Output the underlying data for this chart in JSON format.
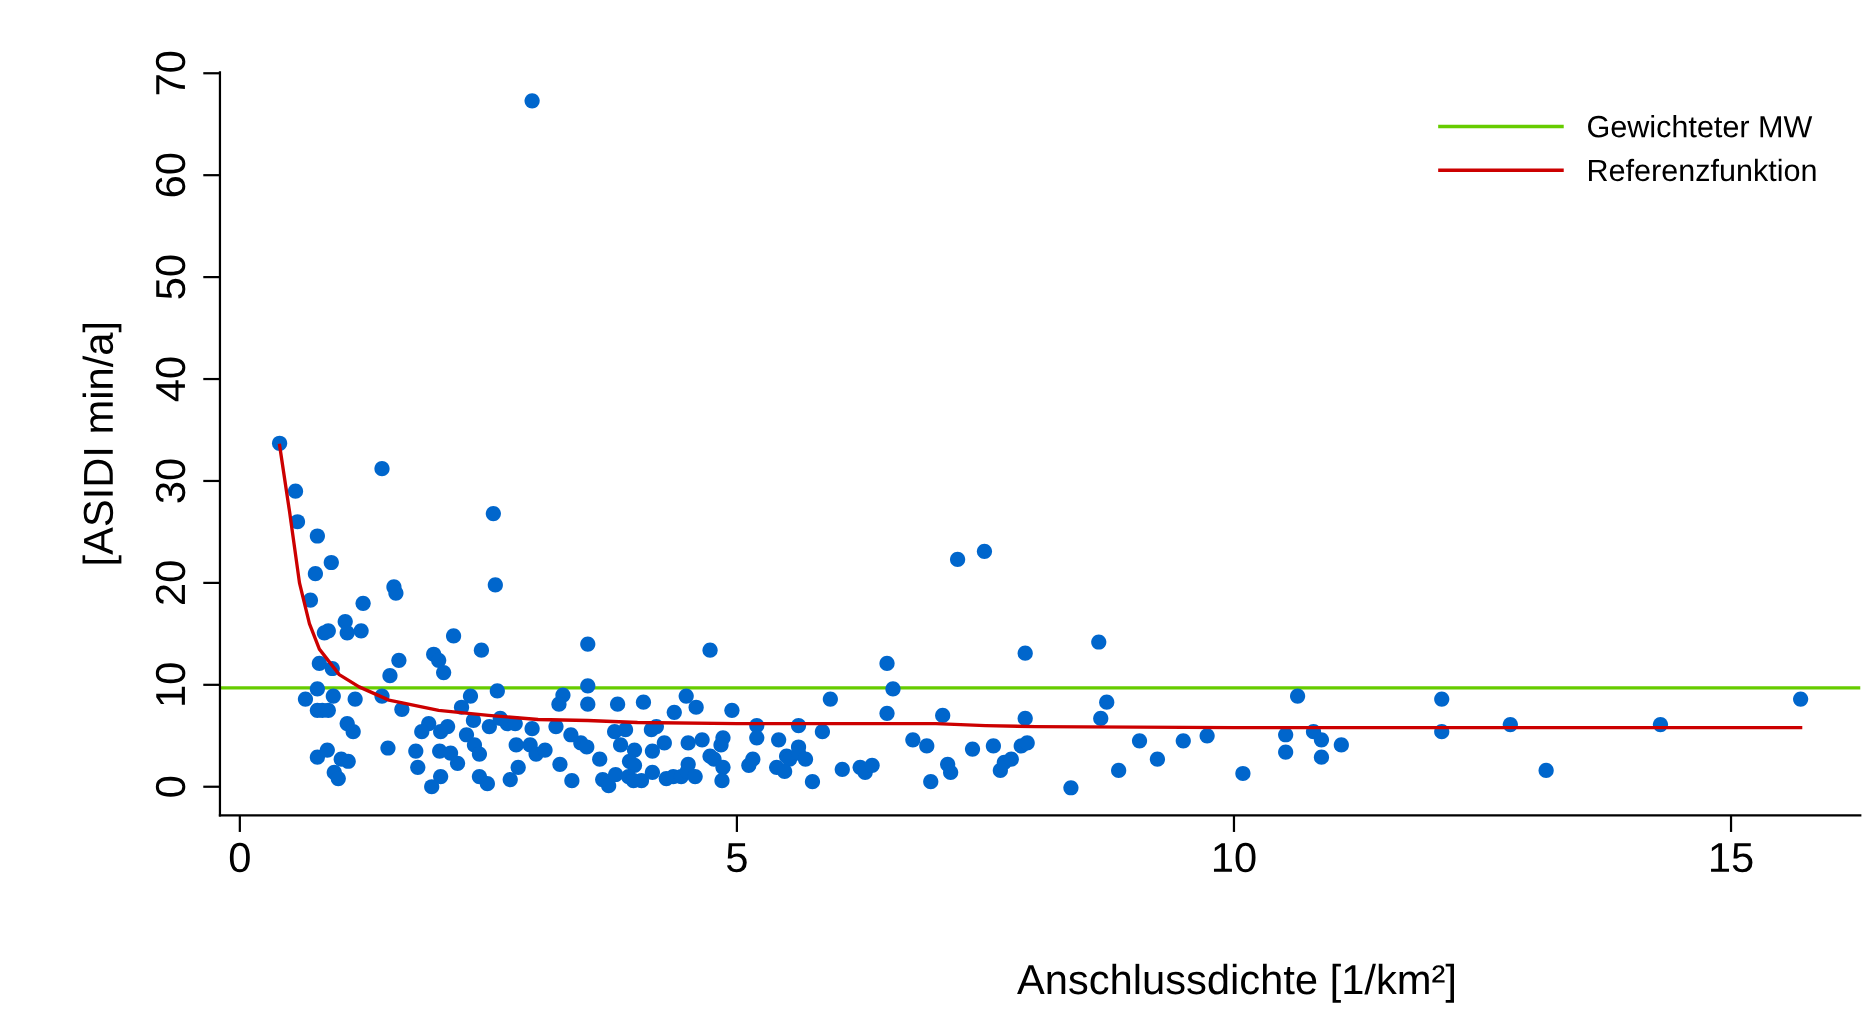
{
  "chart_data": {
    "type": "scatter",
    "xlabel": "Anschlussdichte [1/km²]",
    "ylabel": "[ASIDI min/a]",
    "xlim": [
      -0.2,
      16.3
    ],
    "ylim": [
      -2.8,
      70.1
    ],
    "xticks": [
      0,
      5,
      10,
      15
    ],
    "yticks": [
      0,
      10,
      20,
      30,
      40,
      50,
      60,
      70
    ],
    "grid": false,
    "legend": "top right",
    "marker": "circle",
    "ref_lines": [
      {
        "axis": "y",
        "value": 9.7,
        "label": "Gewichteter MW",
        "color": "#66cc00",
        "line_style": "solid"
      }
    ],
    "series": [
      {
        "color": "#0066cc",
        "x": [
          2.94,
          0.4,
          0.56,
          0.58,
          0.78,
          1.43,
          0.92,
          0.76,
          0.71,
          1.24,
          1.55,
          1.57,
          2.55,
          2.57,
          1.06,
          1.08,
          1.22,
          0.85,
          0.89,
          2.15,
          2.43,
          3.5,
          0.8,
          0.93,
          1.6,
          1.95,
          2.0,
          2.05,
          1.51,
          3.5,
          0.78,
          0.66,
          0.94,
          1.16,
          1.43,
          2.32,
          2.59,
          3.25,
          3.21,
          3.5,
          0.78,
          0.83,
          0.89,
          1.63,
          2.23,
          2.35,
          1.08,
          1.14,
          1.9,
          1.83,
          2.02,
          2.09,
          2.28,
          2.51,
          2.62,
          2.69,
          2.77,
          2.94,
          3.18,
          3.33,
          3.43,
          3.49,
          1.49,
          1.77,
          2.01,
          2.12,
          2.19,
          2.36,
          2.41,
          2.78,
          2.92,
          2.98,
          3.07,
          0.78,
          0.88,
          1.02,
          1.09,
          1.79,
          3.22,
          3.62,
          0.95,
          0.99,
          2.02,
          1.93,
          2.41,
          2.49,
          2.72,
          2.8,
          3.34,
          3.65,
          4.73,
          6.51,
          6.57,
          3.8,
          4.06,
          4.49,
          4.59,
          4.37,
          4.95,
          5.94,
          6.51,
          7.07,
          5.2,
          5.62,
          5.86,
          3.77,
          3.88,
          4.14,
          4.19,
          3.83,
          3.97,
          4.15,
          4.27,
          4.51,
          4.65,
          4.86,
          4.84,
          5.2,
          5.42,
          5.62,
          6.77,
          6.91,
          7.37,
          3.92,
          3.97,
          4.51,
          4.73,
          4.77,
          4.86,
          5.12,
          5.16,
          5.4,
          5.5,
          5.53,
          5.62,
          5.69,
          5.48,
          3.71,
          3.78,
          3.91,
          3.96,
          4.04,
          4.15,
          4.29,
          4.36,
          4.44,
          4.5,
          4.58,
          4.85,
          5.76,
          6.06,
          6.24,
          6.29,
          6.36,
          6.95,
          7.12,
          7.15,
          7.22,
          7.49,
          7.9,
          8.64,
          7.9,
          8.72,
          8.66,
          7.58,
          7.86,
          7.92,
          7.65,
          7.69,
          7.76,
          8.36,
          8.84,
          9.05,
          9.23,
          9.49,
          9.73,
          10.09,
          10.64,
          10.52,
          10.52,
          10.8,
          10.88,
          10.88,
          11.08,
          12.09,
          12.09,
          12.78,
          13.14,
          14.29,
          15.7
        ],
        "values": [
          67.3,
          33.7,
          29.0,
          26.0,
          24.6,
          31.2,
          22.0,
          20.9,
          18.3,
          18.0,
          19.6,
          19.0,
          26.8,
          19.8,
          16.2,
          15.1,
          15.3,
          15.1,
          15.3,
          14.8,
          13.4,
          14.0,
          12.1,
          11.6,
          12.4,
          13.0,
          12.4,
          11.2,
          10.9,
          9.9,
          9.6,
          8.6,
          8.9,
          8.6,
          8.9,
          8.9,
          9.4,
          9.0,
          8.1,
          8.1,
          7.5,
          7.5,
          7.5,
          7.6,
          7.8,
          6.5,
          6.2,
          5.4,
          6.2,
          5.4,
          5.4,
          5.9,
          5.1,
          5.9,
          6.7,
          6.2,
          6.2,
          5.7,
          5.9,
          5.1,
          4.3,
          3.9,
          3.8,
          3.5,
          3.5,
          3.3,
          2.3,
          4.1,
          3.2,
          4.1,
          4.1,
          3.2,
          3.6,
          2.9,
          3.6,
          2.7,
          2.5,
          1.9,
          2.2,
          2.7,
          1.4,
          0.8,
          1.0,
          0.0,
          1.0,
          0.3,
          0.7,
          1.9,
          0.6,
          0.7,
          13.4,
          12.1,
          9.6,
          8.1,
          8.3,
          8.9,
          7.8,
          7.3,
          7.5,
          8.6,
          7.2,
          7.0,
          6.0,
          6.0,
          5.4,
          5.4,
          5.6,
          5.6,
          5.9,
          4.1,
          3.6,
          3.5,
          4.3,
          4.3,
          4.6,
          4.8,
          4.1,
          4.8,
          4.6,
          3.9,
          4.6,
          4.0,
          3.7,
          2.5,
          2.1,
          2.2,
          3.0,
          2.7,
          1.9,
          2.1,
          2.7,
          1.9,
          3.0,
          2.7,
          3.3,
          2.7,
          1.5,
          0.1,
          1.2,
          1.0,
          0.6,
          0.6,
          1.4,
          0.8,
          1.0,
          1.0,
          1.5,
          1.0,
          0.6,
          0.5,
          1.7,
          1.9,
          1.4,
          2.1,
          0.5,
          2.2,
          1.4,
          22.3,
          23.1,
          13.1,
          14.2,
          6.7,
          8.3,
          6.7,
          4.0,
          4.0,
          4.3,
          1.6,
          2.4,
          2.7,
          -0.1,
          1.6,
          4.5,
          2.7,
          4.5,
          5.0,
          1.3,
          8.9,
          5.1,
          3.4,
          5.4,
          4.6,
          2.9,
          4.1,
          8.6,
          5.4,
          6.1,
          1.6,
          6.1,
          8.6
        ]
      },
      {
        "type": "line",
        "name": "Referenzfunktion",
        "color": "#cc0000",
        "marker": "none",
        "line_style": "solid",
        "x": [
          0.4,
          0.5,
          0.6,
          0.7,
          0.8,
          1.0,
          1.2,
          1.5,
          2.0,
          2.5,
          3.0,
          3.5,
          4.0,
          5.0,
          7.0,
          7.5,
          8.0,
          10.0,
          15.7
        ],
        "values": [
          33.5,
          27,
          20,
          16,
          13.5,
          11,
          9.8,
          8.5,
          7.5,
          7,
          6.6,
          6.5,
          6.3,
          6.2,
          6.2,
          6.0,
          5.9,
          5.8,
          5.8
        ]
      }
    ]
  }
}
